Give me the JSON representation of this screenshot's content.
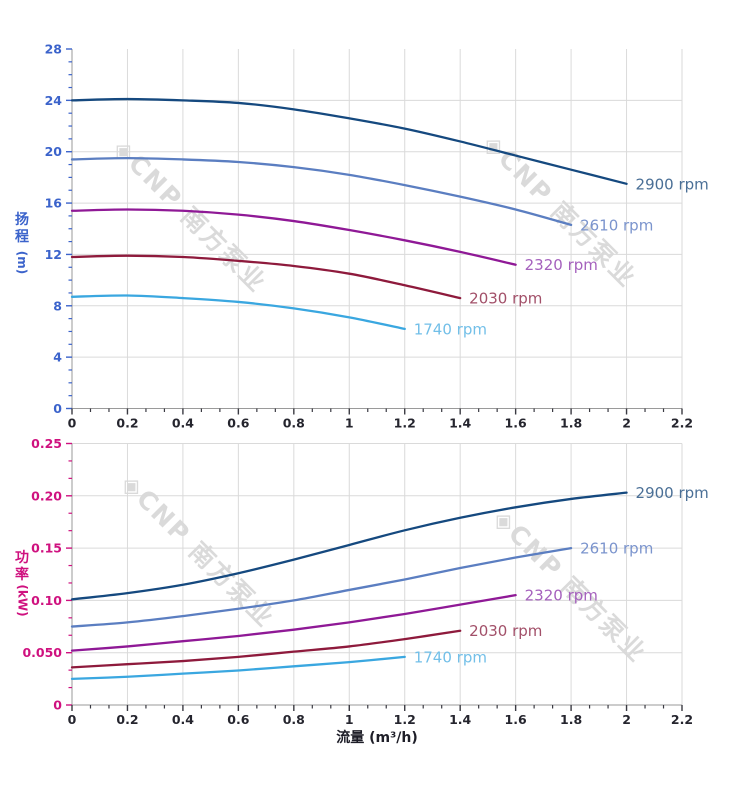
{
  "watermark": {
    "logo_glyph": "◈",
    "text": "CNP 南方泵业",
    "color": "#d9d9d9"
  },
  "style": {
    "background": "#ffffff",
    "grid_color": "#dadada",
    "axis_line_color": "#9a9a9a",
    "x_tick_color": "#3a3a42",
    "x_tick_label_color": "#25252e",
    "x_title_color": "#1e1e28"
  },
  "chart_data": [
    {
      "type": "line",
      "title": "",
      "xlabel": "流量 (m³/h)",
      "ylabel": "扬程 (m)",
      "ylabel_chars": [
        "扬",
        "程"
      ],
      "ylabel_unit": "(m)",
      "axis_color": "#3b63cb",
      "xlim": [
        0,
        2.2
      ],
      "ylim": [
        0,
        28
      ],
      "x_tick_labels": [
        "0",
        "0.2",
        "0.4",
        "0.6",
        "0.8",
        "1",
        "1.2",
        "1.4",
        "1.6",
        "1.8",
        "2",
        "2.2"
      ],
      "x_tick_values": [
        0,
        0.2,
        0.4,
        0.6,
        0.8,
        1,
        1.2,
        1.4,
        1.6,
        1.8,
        2,
        2.2
      ],
      "y_tick_labels": [
        "0",
        "4",
        "8",
        "12",
        "16",
        "20",
        "24",
        "28"
      ],
      "y_tick_values": [
        0,
        4,
        8,
        12,
        16,
        20,
        24,
        28
      ],
      "y_gridlines": [
        4,
        8,
        12,
        16,
        20,
        24
      ],
      "grid": true,
      "legend_position": "end-of-curve",
      "series": [
        {
          "name": "2900 rpm",
          "color": "#15497f",
          "label_color": "#4a6f96",
          "x": [
            0,
            0.2,
            0.4,
            0.6,
            0.8,
            1,
            1.2,
            1.4,
            1.6,
            1.8,
            2
          ],
          "y": [
            24,
            24.1,
            24,
            23.8,
            23.3,
            22.6,
            21.8,
            20.8,
            19.7,
            18.6,
            17.5
          ]
        },
        {
          "name": "2610 rpm",
          "color": "#5b7ec1",
          "label_color": "#7b94cd",
          "x": [
            0,
            0.2,
            0.4,
            0.6,
            0.8,
            1,
            1.2,
            1.4,
            1.6,
            1.8
          ],
          "y": [
            19.4,
            19.5,
            19.4,
            19.2,
            18.8,
            18.2,
            17.4,
            16.5,
            15.5,
            14.3
          ]
        },
        {
          "name": "2320 rpm",
          "color": "#8f1996",
          "label_color": "#a561bd",
          "x": [
            0,
            0.2,
            0.4,
            0.6,
            0.8,
            1,
            1.2,
            1.4,
            1.6
          ],
          "y": [
            15.4,
            15.5,
            15.4,
            15.1,
            14.6,
            13.9,
            13.1,
            12.2,
            11.2
          ]
        },
        {
          "name": "2030 rpm",
          "color": "#8e1a3c",
          "label_color": "#a25069",
          "x": [
            0,
            0.2,
            0.4,
            0.6,
            0.8,
            1,
            1.2,
            1.4
          ],
          "y": [
            11.8,
            11.9,
            11.8,
            11.5,
            11.1,
            10.5,
            9.6,
            8.6
          ]
        },
        {
          "name": "1740 rpm",
          "color": "#3aa7e0",
          "label_color": "#72bfe8",
          "x": [
            0,
            0.2,
            0.4,
            0.6,
            0.8,
            1,
            1.2
          ],
          "y": [
            8.7,
            8.8,
            8.6,
            8.3,
            7.8,
            7.1,
            6.2
          ]
        }
      ]
    },
    {
      "type": "line",
      "title": "",
      "xlabel": "流量 (m³/h)",
      "ylabel": "功率 (kW)",
      "ylabel_chars": [
        "功",
        "率"
      ],
      "ylabel_unit": "(kW)",
      "axis_color": "#cf117f",
      "xlim": [
        0,
        2.2
      ],
      "ylim": [
        0,
        0.25
      ],
      "x_tick_labels": [
        "0",
        "0.2",
        "0.4",
        "0.6",
        "0.8",
        "1",
        "1.2",
        "1.4",
        "1.6",
        "1.8",
        "2",
        "2.2"
      ],
      "x_tick_values": [
        0,
        0.2,
        0.4,
        0.6,
        0.8,
        1,
        1.2,
        1.4,
        1.6,
        1.8,
        2,
        2.2
      ],
      "y_tick_labels": [
        "0",
        "0.050",
        "0.10",
        "0.15",
        "0.20",
        "0.25"
      ],
      "y_tick_values": [
        0,
        0.05,
        0.1,
        0.15,
        0.2,
        0.25
      ],
      "y_gridlines": [
        0.05,
        0.1,
        0.15,
        0.2,
        0.25
      ],
      "grid": true,
      "legend_position": "end-of-curve",
      "series": [
        {
          "name": "2900 rpm",
          "color": "#15497f",
          "label_color": "#4a6f96",
          "x": [
            0,
            0.2,
            0.4,
            0.6,
            0.8,
            1,
            1.2,
            1.4,
            1.6,
            1.8,
            2
          ],
          "y": [
            0.101,
            0.107,
            0.115,
            0.126,
            0.139,
            0.153,
            0.167,
            0.179,
            0.189,
            0.197,
            0.203
          ]
        },
        {
          "name": "2610 rpm",
          "color": "#5b7ec1",
          "label_color": "#7b94cd",
          "x": [
            0,
            0.2,
            0.4,
            0.6,
            0.8,
            1,
            1.2,
            1.4,
            1.6,
            1.8
          ],
          "y": [
            0.075,
            0.079,
            0.085,
            0.092,
            0.1,
            0.11,
            0.12,
            0.131,
            0.141,
            0.15
          ]
        },
        {
          "name": "2320 rpm",
          "color": "#8f1996",
          "label_color": "#a561bd",
          "x": [
            0,
            0.2,
            0.4,
            0.6,
            0.8,
            1,
            1.2,
            1.4,
            1.6
          ],
          "y": [
            0.052,
            0.056,
            0.061,
            0.066,
            0.072,
            0.079,
            0.087,
            0.096,
            0.105
          ]
        },
        {
          "name": "2030 rpm",
          "color": "#8e1a3c",
          "label_color": "#a25069",
          "x": [
            0,
            0.2,
            0.4,
            0.6,
            0.8,
            1,
            1.2,
            1.4
          ],
          "y": [
            0.036,
            0.039,
            0.042,
            0.046,
            0.051,
            0.056,
            0.063,
            0.071
          ]
        },
        {
          "name": "1740 rpm",
          "color": "#3aa7e0",
          "label_color": "#72bfe8",
          "x": [
            0,
            0.2,
            0.4,
            0.6,
            0.8,
            1,
            1.2
          ],
          "y": [
            0.025,
            0.027,
            0.03,
            0.033,
            0.037,
            0.041,
            0.046
          ]
        }
      ]
    }
  ]
}
